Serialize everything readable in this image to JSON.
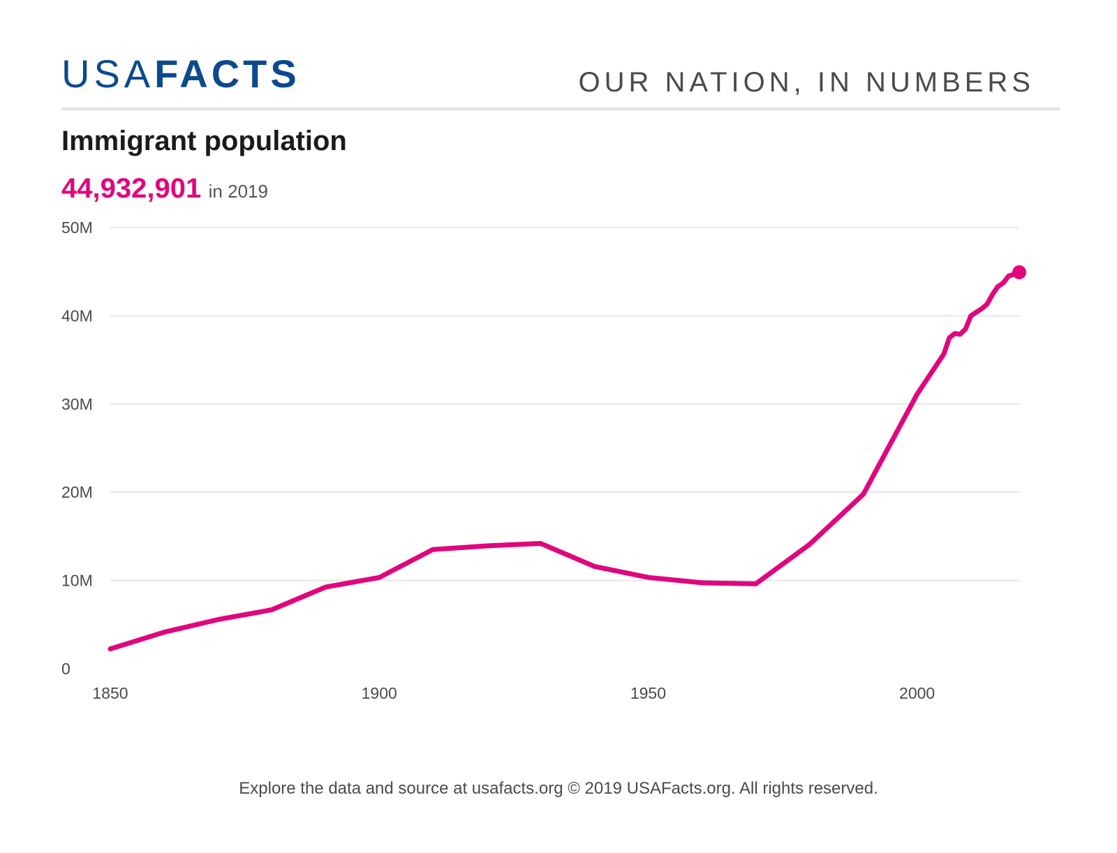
{
  "header": {
    "logo_light": "USA",
    "logo_bold": "FACTS",
    "tagline": "OUR NATION, IN NUMBERS"
  },
  "title": "Immigrant population",
  "headline": {
    "value": "44,932,901",
    "suffix": "in 2019"
  },
  "footer": "Explore the data and source at usafacts.org © 2019 USAFacts.org. All rights reserved.",
  "colors": {
    "line": "#e0067e",
    "brand": "#0b4a8f",
    "grid": "#e6e6e6"
  },
  "chart_data": {
    "type": "line",
    "title": "Immigrant population",
    "xlim": [
      1850,
      2019
    ],
    "ylim": [
      0,
      50000000
    ],
    "x_ticks": [
      1850,
      1900,
      1950,
      2000
    ],
    "y_ticks": [
      0,
      10000000,
      20000000,
      30000000,
      40000000,
      50000000
    ],
    "x_tick_labels": [
      "1850",
      "1900",
      "1950",
      "2000"
    ],
    "y_tick_labels": [
      "0",
      "10M",
      "20M",
      "30M",
      "40M",
      "50M"
    ],
    "grid": true,
    "legend": "none",
    "series": [
      {
        "x": [
          1850,
          1860,
          1870,
          1880,
          1890,
          1900,
          1910,
          1920,
          1930,
          1940,
          1950,
          1960,
          1970,
          1980,
          1990,
          2000,
          2005,
          2006,
          2007,
          2008,
          2009,
          2010,
          2011,
          2012,
          2013,
          2014,
          2015,
          2016,
          2017,
          2018,
          2019
        ],
        "y": [
          2244602,
          4138697,
          5567229,
          6679943,
          9249547,
          10341276,
          13515886,
          13920692,
          14204149,
          11594896,
          10347395,
          9738091,
          9619302,
          14079906,
          19767316,
          31107889,
          35700000,
          37500000,
          38000000,
          37900000,
          38500000,
          40000000,
          40400000,
          40800000,
          41300000,
          42400000,
          43300000,
          43700000,
          44500000,
          44700000,
          44932901
        ]
      }
    ]
  }
}
